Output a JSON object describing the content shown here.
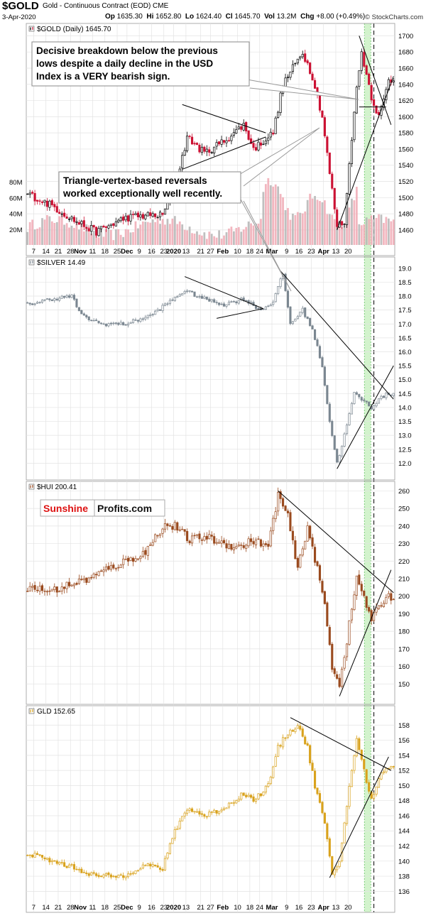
{
  "header": {
    "symbol": "$GOLD",
    "subtitle": "Gold - Continuous Contract (EOD)  CME",
    "date": "3-Apr-2020",
    "op_label": "Op",
    "op": "1635.30",
    "hi_label": "Hi",
    "hi": "1652.80",
    "lo_label": "Lo",
    "lo": "1624.40",
    "cl_label": "Cl",
    "cl": "1645.70",
    "vol_label": "Vol",
    "vol": "13.2M",
    "chg_label": "Chg",
    "chg": "+8.00 (+0.49%)",
    "brand": "© StockCharts.com"
  },
  "colors": {
    "gold_up": "#000000",
    "gold_down": "#cc1133",
    "silver": "#7b8791",
    "hui": "#9a4a1e",
    "gld": "#d9a21c",
    "volume": "#f0a9b4",
    "volume_gray": "#b4b4b4",
    "highlight": "#c8f0c0",
    "grid": "#e3e3e3"
  },
  "watermark": {
    "part1": "Sunshine",
    "part2": "Profits.com"
  },
  "annotations": {
    "note1": [
      "Decisive breakdown below the previous",
      "lows despite a daily decline in the USD",
      "Index is a VERY bearish sign."
    ],
    "note2": [
      "Triangle-vertex-based reversals",
      "worked exceptionally well recently."
    ]
  },
  "x_axis": {
    "labels": [
      "7",
      "14",
      "21",
      "28",
      "Nov",
      "11",
      "18",
      "25",
      "Dec",
      "9",
      "16",
      "23",
      "2020",
      "13",
      "21",
      "27",
      "Feb",
      "10",
      "18",
      "24",
      "Mar",
      "9",
      "16",
      "23",
      "Apr",
      "13",
      "20"
    ],
    "bold": [
      "Nov",
      "Dec",
      "2020",
      "Feb",
      "Mar",
      "Apr"
    ]
  },
  "chart_data": [
    {
      "type": "candlestick",
      "title": "$GOLD (Daily) 1645.70",
      "ylim": [
        1445,
        1710
      ],
      "y_ticks": [
        1460,
        1480,
        1500,
        1520,
        1540,
        1560,
        1580,
        1600,
        1620,
        1640,
        1660,
        1680,
        1700
      ],
      "volume_ticks": [
        "20M",
        "40M",
        "60M",
        "80M"
      ],
      "volume_range": [
        0,
        90
      ],
      "keypoints": [
        [
          0,
          1505
        ],
        [
          10,
          1490
        ],
        [
          20,
          1470
        ],
        [
          28,
          1458
        ],
        [
          40,
          1475
        ],
        [
          48,
          1478
        ],
        [
          55,
          1478
        ],
        [
          61,
          1525
        ],
        [
          65,
          1575
        ],
        [
          72,
          1555
        ],
        [
          80,
          1570
        ],
        [
          88,
          1590
        ],
        [
          92,
          1560
        ],
        [
          100,
          1580
        ],
        [
          104,
          1640
        ],
        [
          108,
          1660
        ],
        [
          112,
          1680
        ],
        [
          116,
          1650
        ],
        [
          120,
          1600
        ],
        [
          123,
          1530
        ],
        [
          126,
          1465
        ],
        [
          129,
          1470
        ],
        [
          133,
          1610
        ],
        [
          136,
          1680
        ],
        [
          140,
          1625
        ],
        [
          143,
          1600
        ],
        [
          145,
          1620
        ],
        [
          147,
          1645
        ]
      ]
    },
    {
      "type": "candlestick",
      "title": "$SILVER 14.49",
      "ylim": [
        11.5,
        19.25
      ],
      "y_ticks": [
        12.0,
        12.5,
        13.0,
        13.5,
        14.0,
        14.5,
        15.0,
        15.5,
        16.0,
        16.5,
        17.0,
        17.5,
        18.0,
        18.5,
        19.0
      ],
      "keypoints": [
        [
          0,
          17.7
        ],
        [
          10,
          17.9
        ],
        [
          18,
          18.0
        ],
        [
          22,
          17.3
        ],
        [
          30,
          17.0
        ],
        [
          40,
          17.0
        ],
        [
          50,
          17.3
        ],
        [
          58,
          17.8
        ],
        [
          64,
          18.2
        ],
        [
          72,
          17.9
        ],
        [
          80,
          17.7
        ],
        [
          88,
          17.9
        ],
        [
          95,
          17.5
        ],
        [
          100,
          17.8
        ],
        [
          104,
          18.8
        ],
        [
          107,
          17.0
        ],
        [
          112,
          17.5
        ],
        [
          116,
          16.8
        ],
        [
          120,
          15.5
        ],
        [
          123,
          13.5
        ],
        [
          126,
          12.0
        ],
        [
          129,
          13.0
        ],
        [
          133,
          14.5
        ],
        [
          136,
          14.3
        ],
        [
          140,
          14.0
        ],
        [
          143,
          14.3
        ],
        [
          147,
          14.5
        ]
      ]
    },
    {
      "type": "candlestick",
      "title": "$HUI 200.41",
      "ylim": [
        140,
        263
      ],
      "y_ticks": [
        150,
        160,
        170,
        180,
        190,
        200,
        210,
        220,
        230,
        240,
        250,
        260
      ],
      "keypoints": [
        [
          0,
          205
        ],
        [
          10,
          203
        ],
        [
          18,
          207
        ],
        [
          25,
          210
        ],
        [
          32,
          215
        ],
        [
          40,
          220
        ],
        [
          48,
          225
        ],
        [
          55,
          240
        ],
        [
          60,
          240
        ],
        [
          66,
          232
        ],
        [
          72,
          234
        ],
        [
          80,
          230
        ],
        [
          86,
          228
        ],
        [
          92,
          232
        ],
        [
          98,
          228
        ],
        [
          102,
          258
        ],
        [
          106,
          245
        ],
        [
          110,
          215
        ],
        [
          114,
          240
        ],
        [
          118,
          215
        ],
        [
          121,
          195
        ],
        [
          124,
          160
        ],
        [
          127,
          150
        ],
        [
          130,
          175
        ],
        [
          134,
          210
        ],
        [
          137,
          200
        ],
        [
          140,
          185
        ],
        [
          143,
          195
        ],
        [
          147,
          200
        ]
      ]
    },
    {
      "type": "candlestick",
      "title": "GLD 152.65",
      "ylim": [
        135,
        160
      ],
      "y_ticks": [
        136,
        138,
        140,
        142,
        144,
        146,
        148,
        150,
        152,
        154,
        156,
        158
      ],
      "keypoints": [
        [
          0,
          141
        ],
        [
          10,
          140
        ],
        [
          20,
          139
        ],
        [
          28,
          138
        ],
        [
          38,
          138
        ],
        [
          48,
          139.5
        ],
        [
          55,
          139
        ],
        [
          60,
          144
        ],
        [
          65,
          147
        ],
        [
          72,
          146
        ],
        [
          80,
          147
        ],
        [
          88,
          149
        ],
        [
          92,
          148
        ],
        [
          98,
          150
        ],
        [
          102,
          155
        ],
        [
          106,
          157
        ],
        [
          110,
          158
        ],
        [
          114,
          155
        ],
        [
          117,
          150
        ],
        [
          121,
          145
        ],
        [
          124,
          138
        ],
        [
          127,
          140
        ],
        [
          131,
          150
        ],
        [
          134,
          156
        ],
        [
          137,
          152
        ],
        [
          140,
          148
        ],
        [
          143,
          151
        ],
        [
          147,
          152.6
        ]
      ]
    }
  ]
}
